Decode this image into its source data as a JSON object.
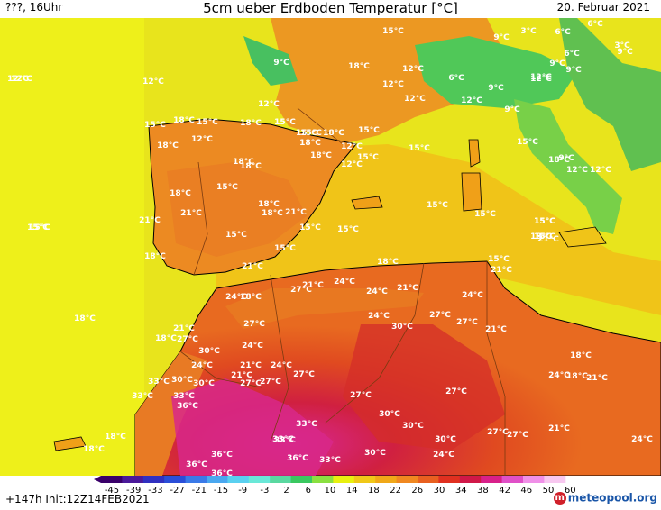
{
  "header": {
    "left": "???, 16Uhr",
    "title": "5cm ueber Erdboden Temperatur [°C]",
    "date": "20. Februar 2021"
  },
  "footer": {
    "run_info": "+147h  Init:12Z14FEB2021",
    "logo": "meteopool.org"
  },
  "colorbar": {
    "ticks": [
      "-45",
      "-39",
      "-33",
      "-27",
      "-21",
      "-15",
      "-9",
      "-3",
      "2",
      "6",
      "10",
      "14",
      "18",
      "22",
      "26",
      "30",
      "34",
      "38",
      "42",
      "46",
      "50",
      "60"
    ],
    "colors": [
      "#3a006a",
      "#4b1a9a",
      "#3030c0",
      "#2a4ed8",
      "#3a7ae8",
      "#4aa8f0",
      "#5ad0f0",
      "#6ae8d8",
      "#5ad8a0",
      "#3ac860",
      "#8ae040",
      "#e8f010",
      "#f0c818",
      "#f0a818",
      "#f08820",
      "#e86020",
      "#e03020",
      "#d01848",
      "#d8208a",
      "#e050c8",
      "#f090e8",
      "#f8c8f0"
    ]
  },
  "map_labels": [
    {
      "t": "15°C"
    },
    {
      "t": "6°C"
    },
    {
      "t": "9°C"
    },
    {
      "t": "3°C"
    },
    {
      "t": "6°C"
    },
    {
      "t": "9°C"
    },
    {
      "t": "12°C"
    },
    {
      "t": "12°C"
    },
    {
      "t": "9°C"
    },
    {
      "t": "18°C"
    },
    {
      "t": "12°C"
    },
    {
      "t": "9°C"
    },
    {
      "t": "6°C"
    },
    {
      "t": "3°C"
    },
    {
      "t": "9°C"
    },
    {
      "t": "6°C"
    },
    {
      "t": "12°C"
    },
    {
      "t": "12°C"
    },
    {
      "t": "12°C"
    },
    {
      "t": "9°C"
    },
    {
      "t": "12°C"
    },
    {
      "t": "12°C"
    },
    {
      "t": "12°C"
    },
    {
      "t": "9°C"
    },
    {
      "t": "15°C"
    },
    {
      "t": "18°C"
    },
    {
      "t": "15°C"
    },
    {
      "t": "18°C"
    },
    {
      "t": "15°C"
    },
    {
      "t": "15°C"
    },
    {
      "t": "18°C"
    },
    {
      "t": "18°C"
    },
    {
      "t": "15°C"
    },
    {
      "t": "12°C"
    },
    {
      "t": "15°C"
    },
    {
      "t": "12°C"
    },
    {
      "t": "18°C"
    },
    {
      "t": "12°C"
    },
    {
      "t": "18°C"
    },
    {
      "t": "15°C"
    },
    {
      "t": "15°C"
    },
    {
      "t": "18°C"
    },
    {
      "t": "18°C"
    },
    {
      "t": "15°C"
    },
    {
      "t": "18°C"
    },
    {
      "t": "12°C"
    },
    {
      "t": "9°C"
    },
    {
      "t": "12°C"
    },
    {
      "t": "18°C"
    },
    {
      "t": "15°C"
    },
    {
      "t": "18°C"
    },
    {
      "t": "21°C"
    },
    {
      "t": "21°C"
    },
    {
      "t": "18°C"
    },
    {
      "t": "21°C"
    },
    {
      "t": "15°C"
    },
    {
      "t": "15°C"
    },
    {
      "t": "15°C"
    },
    {
      "t": "18°C"
    },
    {
      "t": "21°C"
    },
    {
      "t": "15°C"
    },
    {
      "t": "15°C"
    },
    {
      "t": "15°C"
    },
    {
      "t": "15°C"
    },
    {
      "t": "21°C"
    },
    {
      "t": "18°C"
    },
    {
      "t": "15°C"
    },
    {
      "t": "18°C"
    },
    {
      "t": "15°C"
    },
    {
      "t": "24°C"
    },
    {
      "t": "18°C"
    },
    {
      "t": "21°C"
    },
    {
      "t": "27°C"
    },
    {
      "t": "24°C"
    },
    {
      "t": "24°C"
    },
    {
      "t": "21°C"
    },
    {
      "t": "21°C"
    },
    {
      "t": "24°C"
    },
    {
      "t": "18°C"
    },
    {
      "t": "21°C"
    },
    {
      "t": "24°C"
    },
    {
      "t": "27°C"
    },
    {
      "t": "30°C"
    },
    {
      "t": "27°C"
    },
    {
      "t": "27°C"
    },
    {
      "t": "21°C"
    },
    {
      "t": "18°C"
    },
    {
      "t": "27°C"
    },
    {
      "t": "30°C"
    },
    {
      "t": "24°C"
    },
    {
      "t": "21°C"
    },
    {
      "t": "21°C"
    },
    {
      "t": "27°C"
    },
    {
      "t": "24°C"
    },
    {
      "t": "18°C"
    },
    {
      "t": "33°C"
    },
    {
      "t": "24°C"
    },
    {
      "t": "30°C"
    },
    {
      "t": "27°C"
    },
    {
      "t": "30°C"
    },
    {
      "t": "27°C"
    },
    {
      "t": "24°C"
    },
    {
      "t": "21°C"
    },
    {
      "t": "33°C"
    },
    {
      "t": "33°C"
    },
    {
      "t": "36°C"
    },
    {
      "t": "27°C"
    },
    {
      "t": "27°C"
    },
    {
      "t": "30°C"
    },
    {
      "t": "33°C"
    },
    {
      "t": "30°C"
    },
    {
      "t": "33°C"
    },
    {
      "t": "30°C"
    },
    {
      "t": "27°C"
    },
    {
      "t": "27°C"
    },
    {
      "t": "21°C"
    },
    {
      "t": "18°C"
    },
    {
      "t": "36°C"
    },
    {
      "t": "33°C"
    },
    {
      "t": "36°C"
    },
    {
      "t": "36°C"
    },
    {
      "t": "33°C"
    },
    {
      "t": "30°C"
    },
    {
      "t": "24°C"
    },
    {
      "t": "36°C"
    },
    {
      "t": "24°C"
    },
    {
      "t": "18°C"
    },
    {
      "t": "15°C"
    },
    {
      "t": "12°C"
    },
    {
      "t": "15°C"
    },
    {
      "t": "15°C"
    },
    {
      "t": "18°C"
    }
  ],
  "colors": {
    "sea": "#e8ec1a",
    "land_warm": "#f0a018",
    "land_orange": "#ec8a20",
    "land_red": "#e05a22",
    "hot": "#d83222",
    "very_hot": "#cc1a4a",
    "extreme": "#d82890",
    "alps_green": "#40c860",
    "coast": "#000000",
    "border": "#7a3a10"
  }
}
